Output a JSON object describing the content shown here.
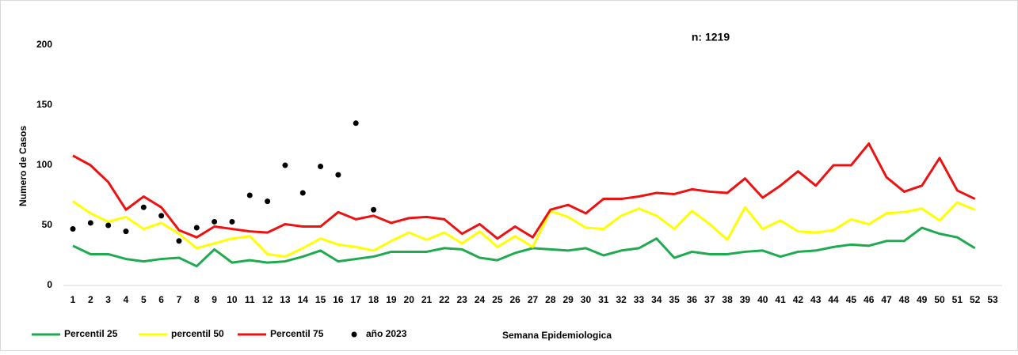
{
  "chart_data": {
    "type": "line",
    "annotation": "n: 1219",
    "x_label": "Semana Epidemiologica",
    "y_label": "Numero de Casos",
    "categories": [
      "1",
      "2",
      "3",
      "4",
      "5",
      "6",
      "7",
      "8",
      "9",
      "10",
      "11",
      "12",
      "13",
      "14",
      "15",
      "16",
      "17",
      "18",
      "19",
      "20",
      "21",
      "22",
      "23",
      "24",
      "25",
      "26",
      "27",
      "28",
      "29",
      "30",
      "31",
      "32",
      "33",
      "34",
      "35",
      "36",
      "37",
      "38",
      "39",
      "40",
      "41",
      "42",
      "43",
      "44",
      "45",
      "46",
      "47",
      "48",
      "49",
      "50",
      "51",
      "52",
      "53"
    ],
    "ylim": [
      0,
      200
    ],
    "yticks": [
      0,
      50,
      100,
      150,
      200
    ],
    "grid": false,
    "series": [
      {
        "name": "Percentil 25",
        "color": "#1faa50",
        "kind": "line",
        "values": [
          33,
          26,
          26,
          22,
          20,
          22,
          23,
          16,
          30,
          19,
          21,
          19,
          20,
          24,
          29,
          20,
          22,
          24,
          28,
          28,
          28,
          31,
          30,
          23,
          21,
          27,
          31,
          30,
          29,
          31,
          25,
          29,
          31,
          39,
          23,
          28,
          26,
          26,
          28,
          29,
          24,
          28,
          29,
          32,
          34,
          33,
          37,
          37,
          48,
          43,
          40,
          31,
          null
        ]
      },
      {
        "name": "percentil 50",
        "color": "#ffff00",
        "kind": "line",
        "values": [
          70,
          60,
          53,
          57,
          47,
          52,
          43,
          31,
          35,
          39,
          41,
          26,
          24,
          31,
          39,
          34,
          32,
          29,
          37,
          44,
          38,
          44,
          35,
          45,
          32,
          41,
          32,
          62,
          57,
          48,
          47,
          58,
          64,
          58,
          47,
          62,
          51,
          38,
          65,
          47,
          54,
          45,
          44,
          46,
          55,
          51,
          60,
          61,
          64,
          54,
          69,
          63,
          null
        ]
      },
      {
        "name": "Percentil 75",
        "color": "#ee1111",
        "kind": "line",
        "values": [
          108,
          100,
          86,
          63,
          74,
          65,
          46,
          40,
          49,
          47,
          45,
          44,
          51,
          49,
          49,
          61,
          55,
          58,
          52,
          56,
          57,
          55,
          43,
          51,
          39,
          49,
          40,
          63,
          67,
          60,
          72,
          72,
          74,
          77,
          76,
          80,
          78,
          77,
          89,
          73,
          83,
          95,
          83,
          100,
          100,
          118,
          90,
          78,
          83,
          106,
          79,
          72,
          null
        ]
      },
      {
        "name": "año 2023",
        "color": "#000000",
        "kind": "dots",
        "values": [
          47,
          52,
          50,
          45,
          65,
          58,
          37,
          48,
          53,
          53,
          75,
          70,
          100,
          77,
          99,
          92,
          135,
          63,
          null,
          null,
          null,
          null,
          null,
          null,
          null,
          null,
          null,
          null,
          null,
          null,
          null,
          null,
          null,
          null,
          null,
          null,
          null,
          null,
          null,
          null,
          null,
          null,
          null,
          null,
          null,
          null,
          null,
          null,
          null,
          null,
          null,
          null,
          null
        ]
      }
    ]
  }
}
